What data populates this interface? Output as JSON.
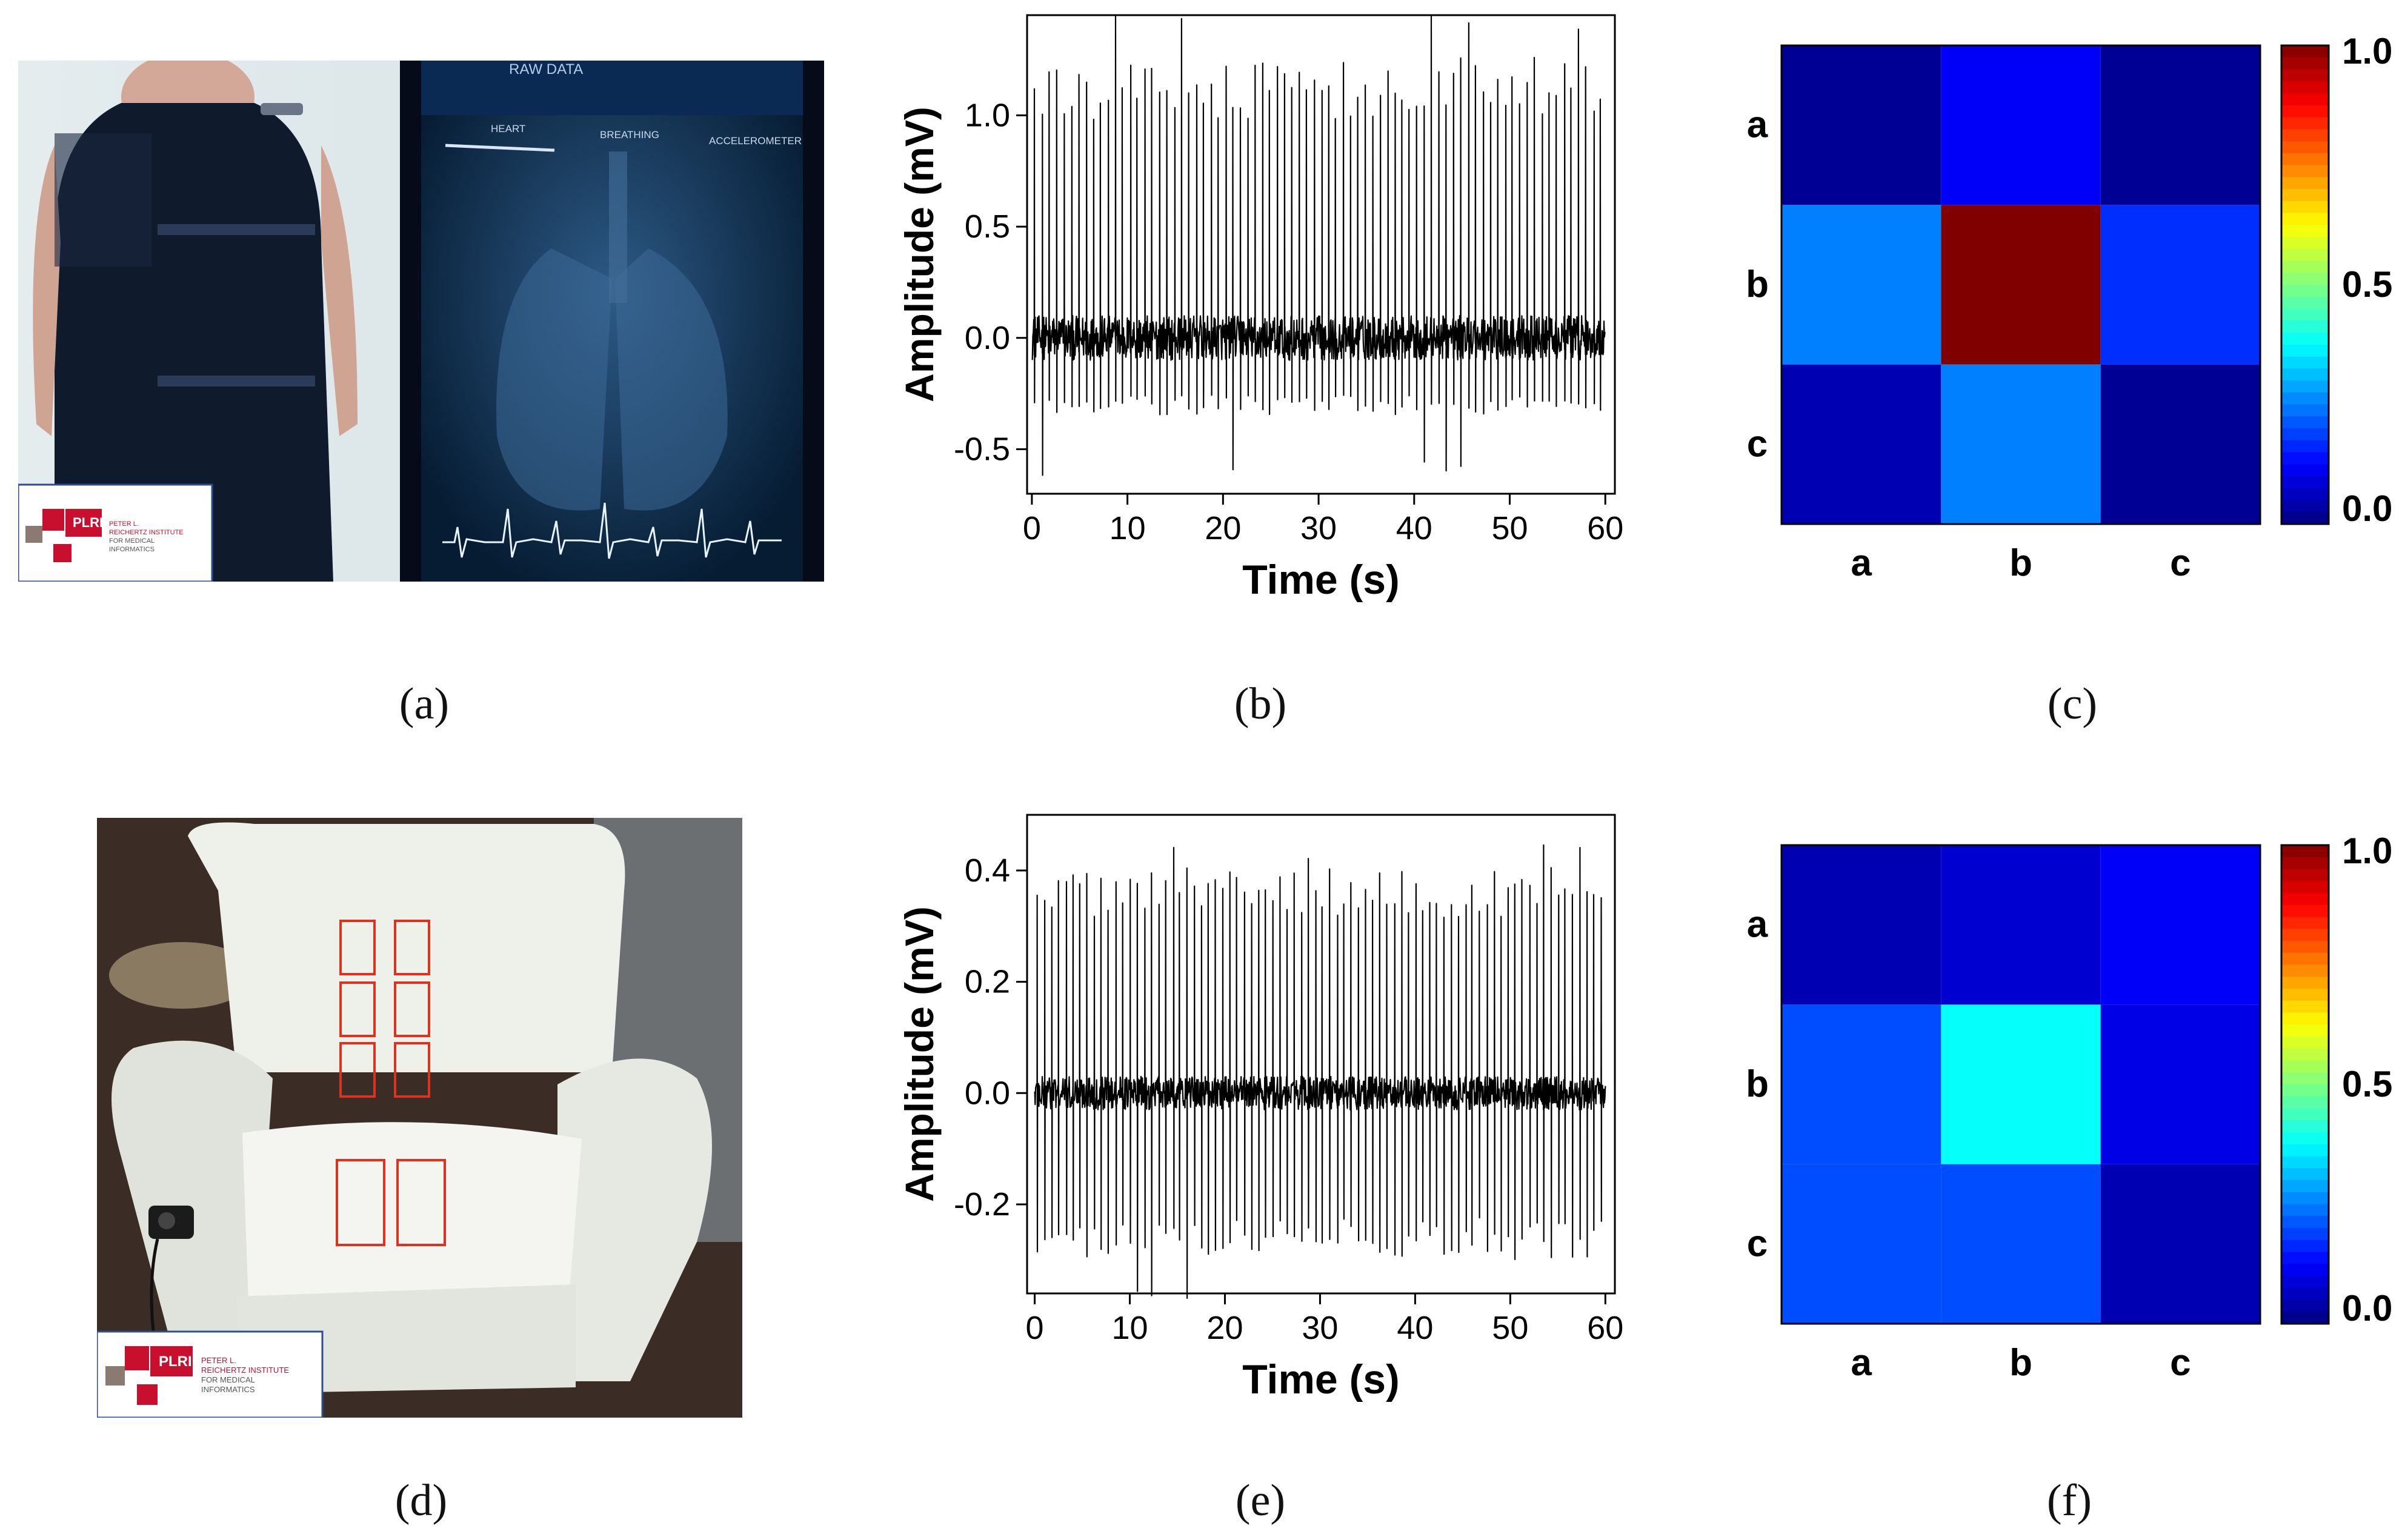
{
  "captions": [
    "(a)",
    "(b)",
    "(c)",
    "(d)",
    "(e)",
    "(f)"
  ],
  "photos": {
    "shirt": {
      "app_title": "RAW DATA",
      "tabs": [
        "HEART",
        "BREATHING",
        "ACCELEROMETER"
      ],
      "logo_mark": "PLRI",
      "logo_lines": [
        "PETER L.",
        "REICHERTZ INSTITUTE",
        "FOR MEDICAL",
        "INFORMATICS"
      ]
    },
    "chair": {
      "logo_mark": "PLRI",
      "logo_lines": [
        "PETER L.",
        "REICHERTZ INSTITUTE",
        "FOR MEDICAL",
        "INFORMATICS"
      ]
    }
  },
  "chart_data": [
    {
      "id": "b",
      "type": "line",
      "xlabel": "Time (s)",
      "ylabel": "Amplitude (mV)",
      "xlim": [
        -0.5,
        61
      ],
      "ylim": [
        -0.7,
        1.45
      ],
      "xticks": [
        0,
        10,
        20,
        30,
        40,
        50,
        60
      ],
      "yticks": [
        -0.5,
        0.0,
        0.5,
        1.0
      ],
      "ytick_labels": [
        "-0.5",
        "0.0",
        "0.5",
        "1.0"
      ],
      "signal": {
        "duration_s": 60,
        "beats": 78,
        "baseline_noise_mV": 0.1,
        "r_peak_mV": 1.12,
        "r_peak_max_mV": 1.35,
        "s_trough_mV": -0.3,
        "s_trough_min_mV": -0.6
      },
      "color": "#000000"
    },
    {
      "id": "c",
      "type": "heatmap",
      "rows": [
        "a",
        "b",
        "c"
      ],
      "cols": [
        "a",
        "b",
        "c"
      ],
      "values": [
        [
          0.02,
          0.12,
          0.02
        ],
        [
          0.25,
          1.0,
          0.17
        ],
        [
          0.05,
          0.25,
          0.02
        ]
      ],
      "colorbar_ticks": [
        "1.0",
        "0.5",
        "0.0"
      ],
      "colormap": "jet"
    },
    {
      "id": "e",
      "type": "line",
      "xlabel": "Time (s)",
      "ylabel": "Amplitude (mV)",
      "xlim": [
        -0.8,
        61
      ],
      "ylim": [
        -0.36,
        0.5
      ],
      "xticks": [
        0,
        10,
        20,
        30,
        40,
        50,
        60
      ],
      "yticks": [
        -0.2,
        0.0,
        0.2,
        0.4
      ],
      "ytick_labels": [
        "-0.2",
        "0.0",
        "0.2",
        "0.4"
      ],
      "signal": {
        "duration_s": 60,
        "beats": 80,
        "baseline_noise_mV": 0.03,
        "r_peak_mV": 0.36,
        "r_peak_max_mV": 0.41,
        "s_trough_mV": -0.26,
        "s_trough_min_mV": -0.34
      },
      "color": "#000000"
    },
    {
      "id": "f",
      "type": "heatmap",
      "rows": [
        "a",
        "b",
        "c"
      ],
      "cols": [
        "a",
        "b",
        "c"
      ],
      "values": [
        [
          0.05,
          0.08,
          0.12
        ],
        [
          0.2,
          0.38,
          0.1
        ],
        [
          0.2,
          0.2,
          0.05
        ]
      ],
      "colorbar_ticks": [
        "1.0",
        "0.5",
        "0.0"
      ],
      "colormap": "jet"
    }
  ]
}
